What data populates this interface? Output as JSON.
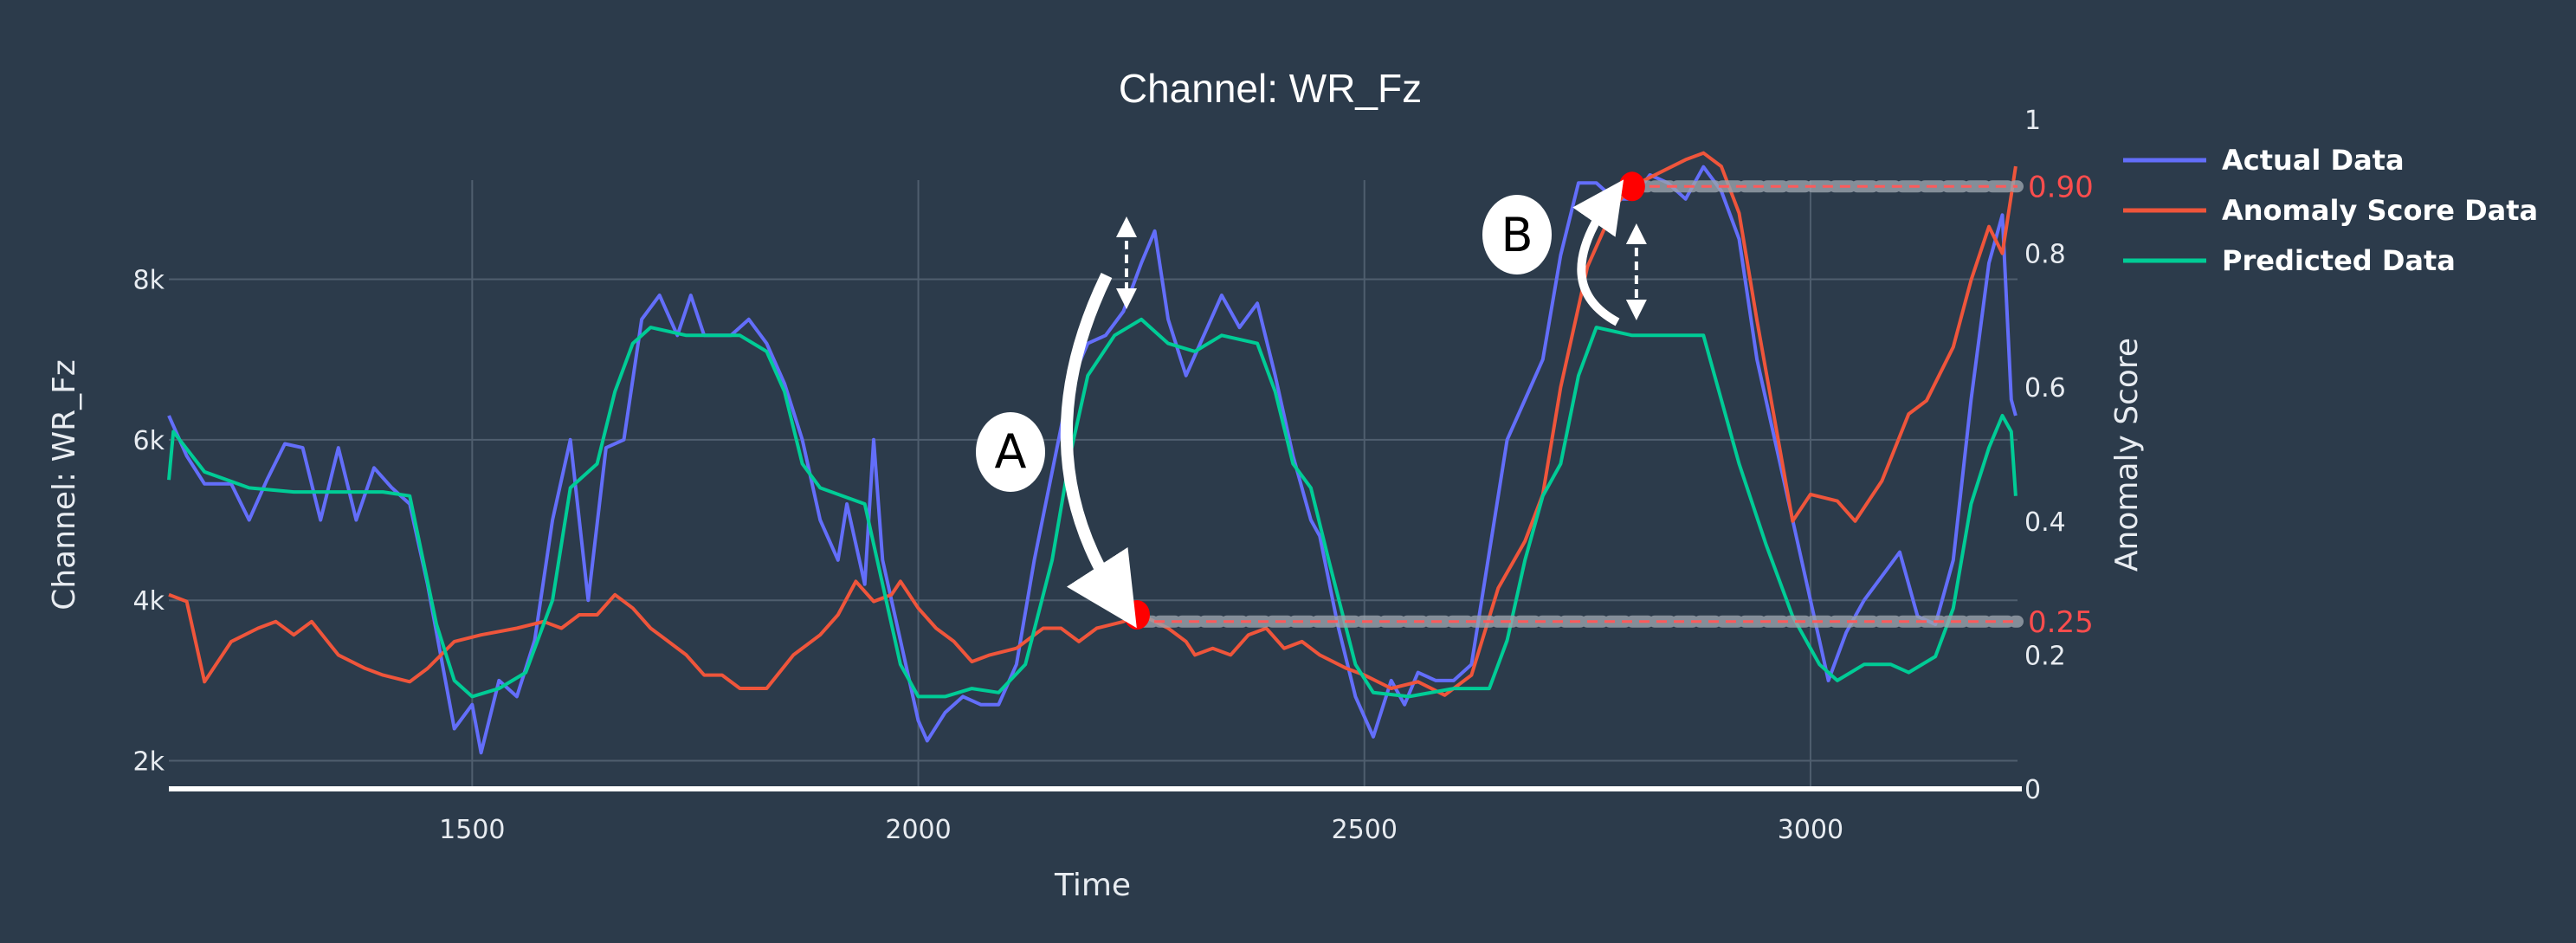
{
  "chart_data": {
    "type": "line",
    "title": "Channel: WR_Fz",
    "xlabel": "Time",
    "ylabel": "Channel: WR_Fz",
    "y2label": "Anomaly Score",
    "xlim": [
      1160,
      3232
    ],
    "ylim": [
      1650,
      9990
    ],
    "y2lim": [
      0,
      1
    ],
    "grid": true,
    "legend_position": "top-right",
    "x_ticks": [
      {
        "v": 1500,
        "label": "1500"
      },
      {
        "v": 2000,
        "label": "2000"
      },
      {
        "v": 2500,
        "label": "2500"
      },
      {
        "v": 3000,
        "label": "3000"
      }
    ],
    "y_ticks": [
      {
        "v": 2000,
        "label": "2k"
      },
      {
        "v": 4000,
        "label": "4k"
      },
      {
        "v": 6000,
        "label": "6k"
      },
      {
        "v": 8000,
        "label": "8k"
      }
    ],
    "y2_ticks": [
      {
        "v": 0,
        "label": "0"
      },
      {
        "v": 0.2,
        "label": "0.2"
      },
      {
        "v": 0.4,
        "label": "0.4"
      },
      {
        "v": 0.6,
        "label": "0.6"
      },
      {
        "v": 0.8,
        "label": "0.8"
      },
      {
        "v": 1,
        "label": "1"
      }
    ],
    "series": [
      {
        "name": "Actual Data",
        "axis": "left",
        "color": "#636efa",
        "x": [
          1160,
          1180,
          1200,
          1230,
          1250,
          1270,
          1290,
          1310,
          1330,
          1350,
          1370,
          1390,
          1410,
          1430,
          1450,
          1470,
          1480,
          1500,
          1510,
          1530,
          1550,
          1570,
          1590,
          1610,
          1630,
          1650,
          1670,
          1690,
          1710,
          1730,
          1745,
          1760,
          1790,
          1810,
          1830,
          1850,
          1870,
          1890,
          1910,
          1920,
          1940,
          1950,
          1960,
          1980,
          2000,
          2010,
          2030,
          2050,
          2070,
          2090,
          2110,
          2130,
          2150,
          2170,
          2190,
          2210,
          2230,
          2250,
          2265,
          2280,
          2300,
          2320,
          2340,
          2360,
          2380,
          2400,
          2420,
          2440,
          2450,
          2470,
          2490,
          2510,
          2530,
          2545,
          2560,
          2580,
          2600,
          2620,
          2640,
          2660,
          2680,
          2700,
          2720,
          2740,
          2760,
          2780,
          2800,
          2820,
          2840,
          2860,
          2880,
          2900,
          2920,
          2940,
          2960,
          2980,
          3000,
          3020,
          3040,
          3060,
          3080,
          3100,
          3120,
          3140,
          3160,
          3180,
          3200,
          3215,
          3225,
          3230
        ],
        "y": [
          6300,
          5800,
          5450,
          5450,
          5000,
          5500,
          5950,
          5900,
          5000,
          5900,
          5000,
          5650,
          5400,
          5200,
          4200,
          3000,
          2400,
          2700,
          2100,
          3000,
          2800,
          3500,
          5000,
          6000,
          4000,
          5900,
          6000,
          7500,
          7800,
          7300,
          7800,
          7300,
          7300,
          7500,
          7200,
          6700,
          6000,
          5000,
          4500,
          5200,
          4200,
          6000,
          4500,
          3500,
          2500,
          2250,
          2600,
          2800,
          2700,
          2700,
          3200,
          4500,
          5600,
          6700,
          7200,
          7300,
          7600,
          8200,
          8600,
          7500,
          6800,
          7300,
          7800,
          7400,
          7700,
          6800,
          5800,
          5000,
          4800,
          3700,
          2800,
          2300,
          3000,
          2700,
          3100,
          3000,
          3000,
          3200,
          4600,
          6000,
          6500,
          7000,
          8300,
          9200,
          9200,
          9000,
          9000,
          9300,
          9200,
          9000,
          9400,
          9100,
          8500,
          7000,
          6000,
          5000,
          4000,
          3000,
          3600,
          4000,
          4300,
          4600,
          3800,
          3700,
          4500,
          6500,
          8200,
          8800,
          6500,
          6300
        ]
      },
      {
        "name": "Anomaly Score Data",
        "axis": "right",
        "color": "#ef553b",
        "x": [
          1160,
          1180,
          1200,
          1230,
          1260,
          1280,
          1300,
          1320,
          1350,
          1380,
          1400,
          1430,
          1450,
          1480,
          1510,
          1550,
          1580,
          1600,
          1620,
          1640,
          1660,
          1680,
          1700,
          1720,
          1740,
          1760,
          1780,
          1800,
          1830,
          1860,
          1890,
          1910,
          1930,
          1950,
          1970,
          1980,
          2000,
          2020,
          2040,
          2060,
          2080,
          2110,
          2140,
          2160,
          2180,
          2200,
          2230,
          2250,
          2280,
          2300,
          2310,
          2330,
          2350,
          2370,
          2390,
          2410,
          2430,
          2450,
          2480,
          2500,
          2530,
          2560,
          2590,
          2620,
          2650,
          2680,
          2700,
          2720,
          2750,
          2780,
          2800,
          2830,
          2860,
          2880,
          2900,
          2920,
          2940,
          2960,
          2980,
          3000,
          3030,
          3050,
          3080,
          3110,
          3130,
          3160,
          3180,
          3200,
          3215,
          3230
        ],
        "y": [
          0.29,
          0.28,
          0.16,
          0.22,
          0.24,
          0.25,
          0.23,
          0.25,
          0.2,
          0.18,
          0.17,
          0.16,
          0.18,
          0.22,
          0.23,
          0.24,
          0.25,
          0.24,
          0.26,
          0.26,
          0.29,
          0.27,
          0.24,
          0.22,
          0.2,
          0.17,
          0.17,
          0.15,
          0.15,
          0.2,
          0.23,
          0.26,
          0.31,
          0.28,
          0.29,
          0.31,
          0.27,
          0.24,
          0.22,
          0.19,
          0.2,
          0.21,
          0.24,
          0.24,
          0.22,
          0.24,
          0.25,
          0.26,
          0.24,
          0.22,
          0.2,
          0.21,
          0.2,
          0.23,
          0.24,
          0.21,
          0.22,
          0.2,
          0.18,
          0.17,
          0.15,
          0.16,
          0.14,
          0.17,
          0.3,
          0.37,
          0.44,
          0.6,
          0.78,
          0.87,
          0.9,
          0.92,
          0.94,
          0.95,
          0.93,
          0.86,
          0.7,
          0.55,
          0.4,
          0.44,
          0.43,
          0.4,
          0.46,
          0.56,
          0.58,
          0.66,
          0.76,
          0.84,
          0.8,
          0.93
        ]
      },
      {
        "name": "Predicted Data",
        "axis": "left",
        "color": "#00cc96",
        "x": [
          1160,
          1165,
          1200,
          1250,
          1300,
          1350,
          1400,
          1430,
          1460,
          1480,
          1500,
          1530,
          1560,
          1590,
          1610,
          1640,
          1660,
          1680,
          1700,
          1740,
          1800,
          1830,
          1850,
          1870,
          1890,
          1940,
          1960,
          1980,
          2000,
          2030,
          2060,
          2090,
          2120,
          2150,
          2170,
          2190,
          2220,
          2250,
          2280,
          2310,
          2340,
          2380,
          2400,
          2420,
          2440,
          2460,
          2490,
          2510,
          2550,
          2600,
          2640,
          2660,
          2680,
          2700,
          2720,
          2740,
          2760,
          2800,
          2850,
          2880,
          2900,
          2920,
          2950,
          2980,
          3010,
          3030,
          3060,
          3090,
          3110,
          3140,
          3160,
          3180,
          3200,
          3215,
          3225,
          3230
        ],
        "y": [
          5500,
          6100,
          5600,
          5400,
          5350,
          5350,
          5350,
          5300,
          3700,
          3000,
          2800,
          2900,
          3100,
          4000,
          5400,
          5700,
          6600,
          7200,
          7400,
          7300,
          7300,
          7100,
          6600,
          5700,
          5400,
          5200,
          4200,
          3200,
          2800,
          2800,
          2900,
          2850,
          3200,
          4500,
          5800,
          6800,
          7300,
          7500,
          7200,
          7100,
          7300,
          7200,
          6600,
          5700,
          5400,
          4500,
          3200,
          2850,
          2800,
          2900,
          2900,
          3500,
          4500,
          5300,
          5700,
          6800,
          7400,
          7300,
          7300,
          7300,
          6500,
          5700,
          4700,
          3800,
          3200,
          3000,
          3200,
          3200,
          3100,
          3300,
          3900,
          5200,
          5900,
          6300,
          6100,
          5300
        ]
      }
    ],
    "annotations": [
      {
        "label": "A",
        "x": 2245,
        "score": 0.26,
        "threshold": 0.25,
        "threshold_label": "0.25"
      },
      {
        "label": "B",
        "x": 2800,
        "score": 0.9,
        "threshold": 0.9,
        "threshold_label": "0.90"
      }
    ],
    "colors": {
      "background": "#2c3b4b",
      "grid": "#4f5e6e",
      "marker": "#ff0000",
      "threshold": "#ff5a5a"
    }
  }
}
